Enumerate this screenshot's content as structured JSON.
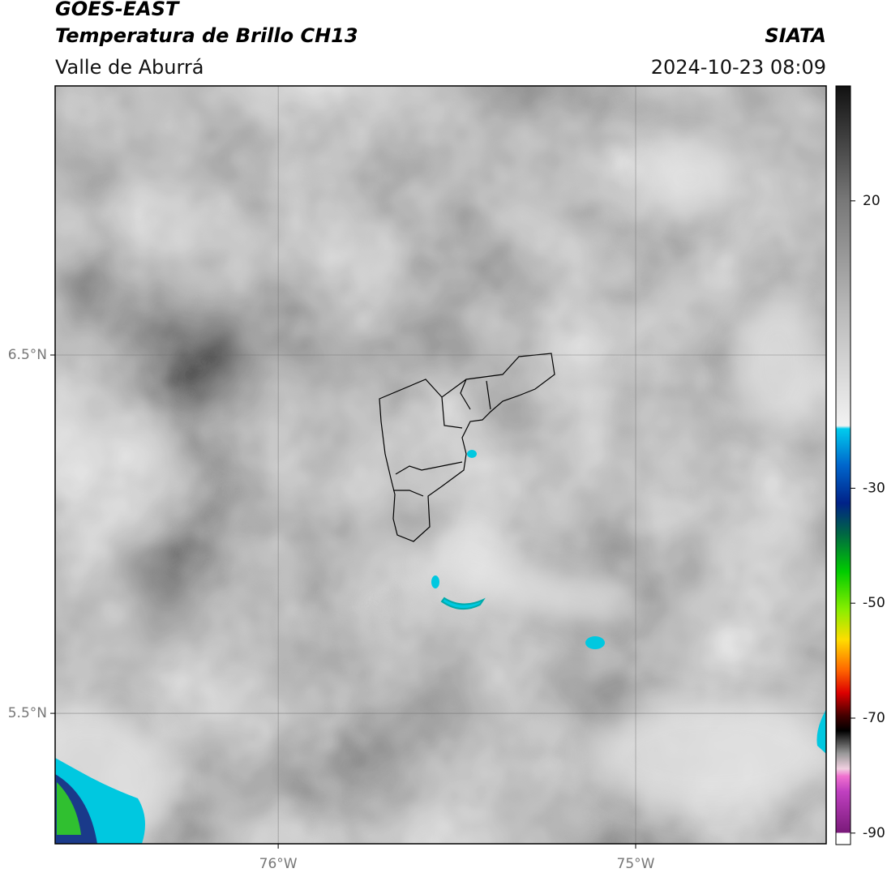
{
  "header": {
    "title": "GOES-EAST",
    "subtitle": "Temperatura de Brillo CH13",
    "region": "Valle de Aburrá",
    "source": "SIATA",
    "datetime": "2024-10-23 08:09"
  },
  "map": {
    "xlim": [
      -76.624,
      -74.467
    ],
    "ylim": [
      5.136,
      7.251
    ],
    "xticks": [
      {
        "value": -76,
        "label": "76°W"
      },
      {
        "value": -75,
        "label": "75°W"
      }
    ],
    "yticks": [
      {
        "value": 6.5,
        "label": "6.5°N"
      },
      {
        "value": 5.5,
        "label": "5.5°N"
      }
    ],
    "grid": true
  },
  "colorbar": {
    "lim": [
      -92,
      40
    ],
    "ticks": [
      20,
      -30,
      -50,
      -70,
      -90
    ]
  }
}
